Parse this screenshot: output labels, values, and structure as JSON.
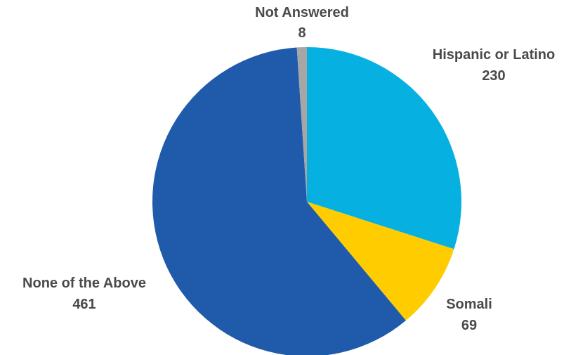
{
  "chart_data": {
    "type": "pie",
    "title": "",
    "start_angle_deg": 0,
    "direction": "clockwise",
    "slices": [
      {
        "name": "Hispanic or Latino",
        "value": 230,
        "color": "#06B0E1"
      },
      {
        "name": "Somali",
        "value": 69,
        "color": "#FFCC00"
      },
      {
        "name": "None of the Above",
        "value": 461,
        "color": "#1F5BAA"
      },
      {
        "name": "Not Answered",
        "value": 8,
        "color": "#A6A6A6"
      }
    ],
    "legend": "none",
    "labels_show_value": true
  }
}
